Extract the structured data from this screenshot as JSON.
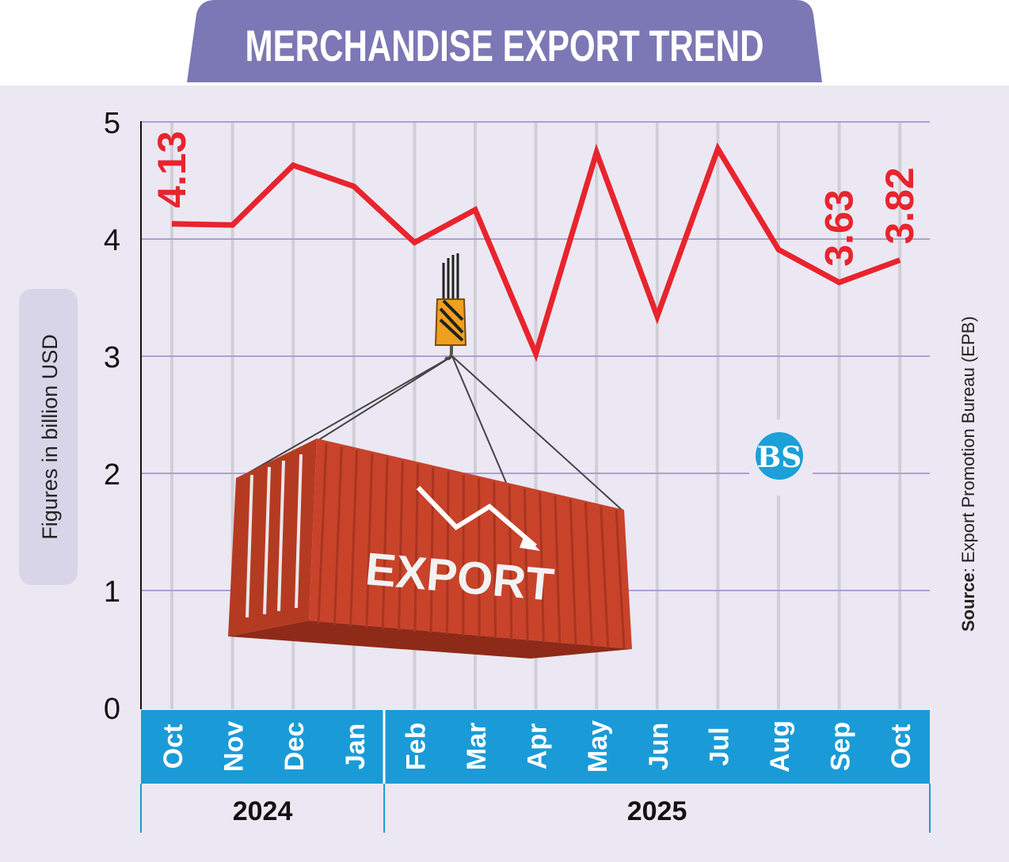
{
  "chart_data": {
    "type": "line",
    "title": "MERCHANDISE EXPORT TREND",
    "ylabel": "Figures in billion USD",
    "ylim": [
      0,
      5
    ],
    "yticks": [
      0,
      1,
      2,
      3,
      4,
      5
    ],
    "grid": true,
    "categories": [
      "Oct",
      "Nov",
      "Dec",
      "Jan",
      "Feb",
      "Mar",
      "Apr",
      "May",
      "Jun",
      "Jul",
      "Aug",
      "Sep",
      "Oct"
    ],
    "year_groups": [
      {
        "label": "2024",
        "count": 4
      },
      {
        "label": "2025",
        "count": 9
      }
    ],
    "series": [
      {
        "values": [
          4.13,
          4.12,
          4.63,
          4.45,
          3.97,
          4.25,
          3.02,
          4.74,
          3.34,
          4.77,
          3.91,
          3.63,
          3.82
        ],
        "color": "#e8242d"
      }
    ],
    "data_labels": [
      {
        "index": 0,
        "text": "4.13"
      },
      {
        "index": 11,
        "text": "3.63"
      },
      {
        "index": 12,
        "text": "3.82"
      }
    ],
    "annotations": {
      "container_text": "EXPORT",
      "logo_letters": "BS"
    },
    "source_bold": "Source",
    "source_rest": ": Export Promotion Bureau (EPB)"
  },
  "colors": {
    "banner": "#7b78b5",
    "plot_bg": "#ebe8f3",
    "axis_band": "#1a9bd7",
    "line": "#e8242d",
    "container": "#c8432a",
    "logo": "#1ba0d8"
  }
}
